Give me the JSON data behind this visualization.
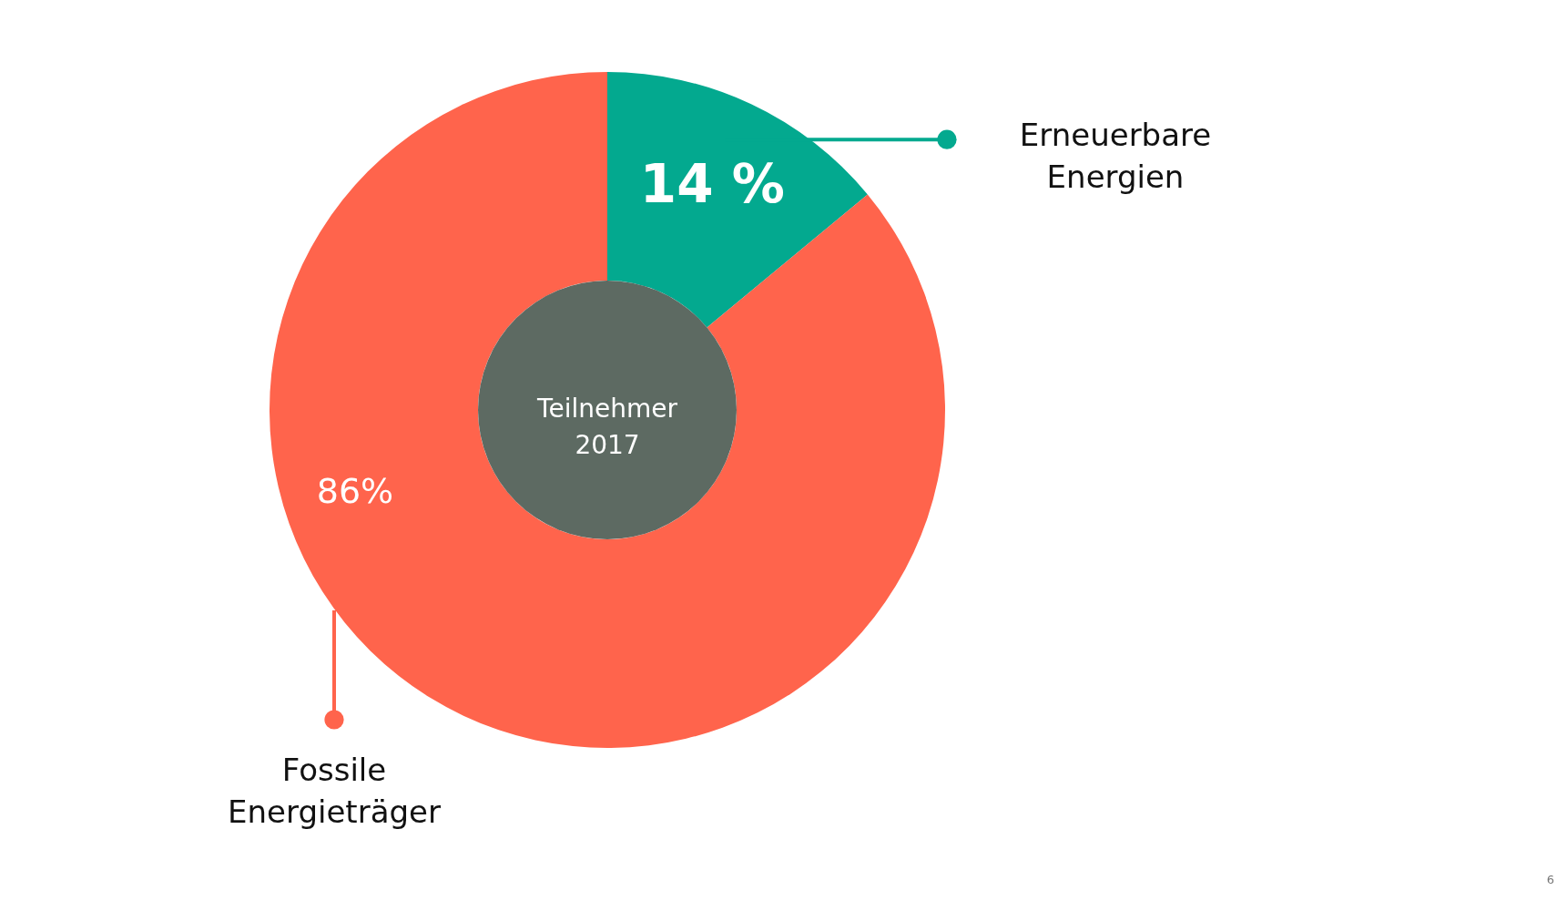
{
  "chart_data": {
    "type": "donut",
    "title": "Teilnehmer\n2017",
    "categories": [
      "Erneuerbare Energien",
      "Fossile Energieträger"
    ],
    "values": [
      14,
      86
    ],
    "colors": [
      "#03a98f",
      "#ff644c"
    ],
    "value_labels": [
      "14 %",
      "86%"
    ],
    "annotations": [
      "6"
    ]
  }
}
